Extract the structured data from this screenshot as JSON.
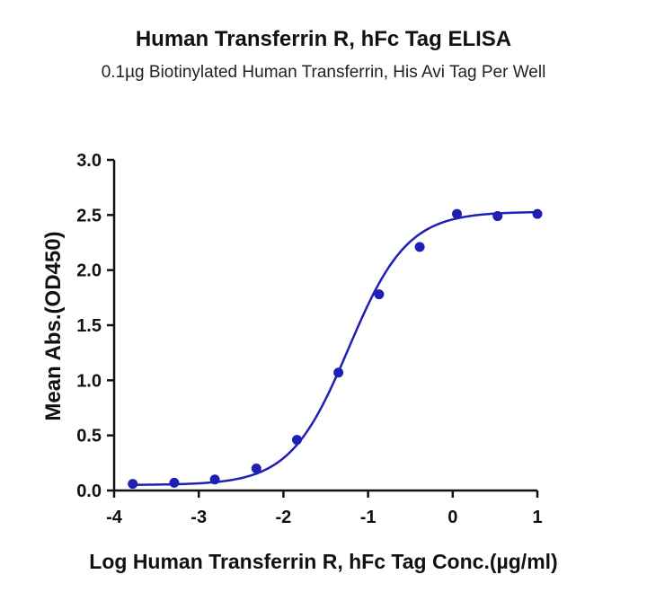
{
  "title": "Human Transferrin R, hFc Tag ELISA",
  "subtitle": "0.1µg Biotinylated Human Transferrin, His Avi Tag Per Well",
  "chart_data": {
    "type": "scatter",
    "title": "Human Transferrin R, hFc Tag ELISA",
    "subtitle": "0.1µg Biotinylated Human Transferrin, His Avi Tag Per Well",
    "xlabel": "Log Human Transferrin R, hFc Tag Conc.(µg/ml)",
    "ylabel": "Mean Abs.(OD450)",
    "xlim": [
      -4,
      1
    ],
    "ylim": [
      0,
      3.0
    ],
    "xticks": [
      "-4",
      "-3",
      "-2",
      "-1",
      "0",
      "1"
    ],
    "yticks": [
      "0.0",
      "0.5",
      "1.0",
      "1.5",
      "2.0",
      "2.5",
      "3.0"
    ],
    "grid": false,
    "color": "#1f1fb4",
    "series": [
      {
        "x": [
          -3.78,
          -3.29,
          -2.81,
          -2.32,
          -1.84,
          -1.35,
          -0.87,
          -0.39,
          0.05,
          0.53,
          1.0
        ],
        "y": [
          0.06,
          0.07,
          0.1,
          0.2,
          0.46,
          1.07,
          1.78,
          2.21,
          2.51,
          2.49,
          2.51
        ]
      }
    ],
    "fit": {
      "model": "4PL",
      "bottom": 0.05,
      "top": 2.53,
      "log_ec50": -1.23,
      "hill_slope": 1.25
    }
  }
}
